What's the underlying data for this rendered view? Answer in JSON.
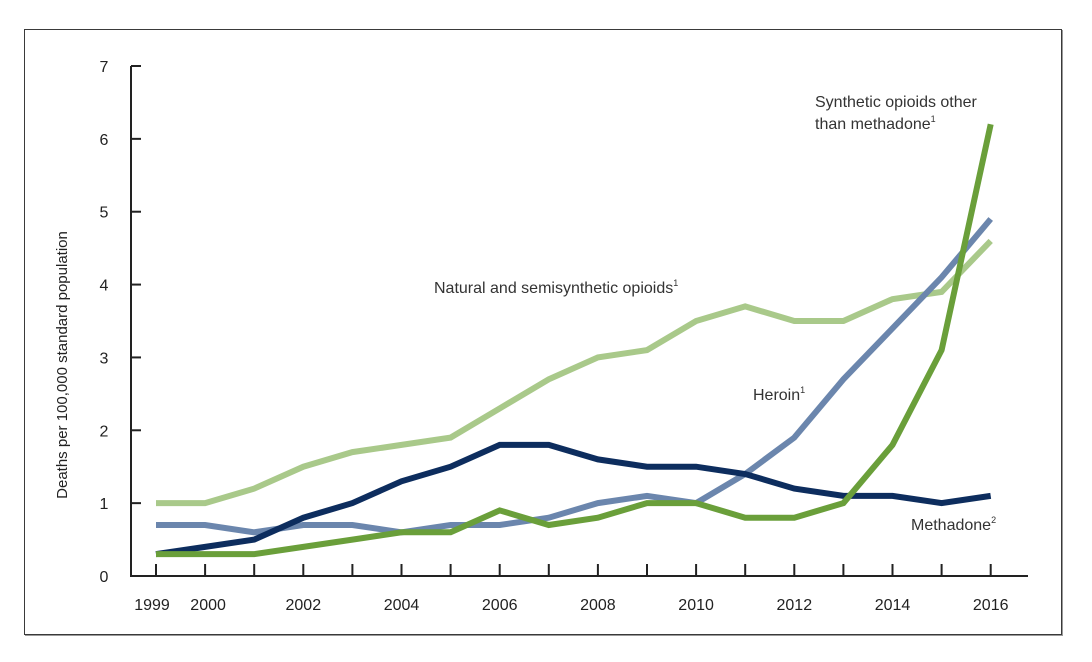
{
  "chart_data": {
    "type": "line",
    "title": "",
    "xlabel": "",
    "ylabel": "Deaths per 100,000 standard population",
    "ylim": [
      0,
      7
    ],
    "xlim": [
      1999,
      2016
    ],
    "grid": false,
    "x": [
      1999,
      2000,
      2001,
      2002,
      2003,
      2004,
      2005,
      2006,
      2007,
      2008,
      2009,
      2010,
      2011,
      2012,
      2013,
      2014,
      2015,
      2016
    ],
    "x_tick_labels": [
      "1999",
      "2000",
      "2002",
      "2004",
      "2006",
      "2008",
      "2010",
      "2012",
      "2014",
      "2016"
    ],
    "y_tick_labels": [
      "0",
      "1",
      "2",
      "3",
      "4",
      "5",
      "6",
      "7"
    ],
    "series": [
      {
        "name": "Natural and semisynthetic opioids",
        "footnote": "1",
        "color": "#a9c98a",
        "values": [
          1.0,
          1.0,
          1.2,
          1.5,
          1.7,
          1.8,
          1.9,
          2.3,
          2.7,
          3.0,
          3.1,
          3.5,
          3.7,
          3.5,
          3.5,
          3.8,
          3.9,
          4.6
        ]
      },
      {
        "name": "Methadone",
        "footnote": "2",
        "color": "#0d2d5e",
        "values": [
          0.3,
          0.4,
          0.5,
          0.8,
          1.0,
          1.3,
          1.5,
          1.8,
          1.8,
          1.6,
          1.5,
          1.5,
          1.4,
          1.2,
          1.1,
          1.1,
          1.0,
          1.1
        ]
      },
      {
        "name": "Heroin",
        "footnote": "1",
        "color": "#6b86ad",
        "values": [
          0.7,
          0.7,
          0.6,
          0.7,
          0.7,
          0.6,
          0.7,
          0.7,
          0.8,
          1.0,
          1.1,
          1.0,
          1.4,
          1.9,
          2.7,
          3.4,
          4.1,
          4.9
        ]
      },
      {
        "name": "Synthetic opioids other than methadone",
        "name_lines": [
          "Synthetic opioids other",
          "than methadone"
        ],
        "footnote": "1",
        "color": "#6a9f3a",
        "values": [
          0.3,
          0.3,
          0.3,
          0.4,
          0.5,
          0.6,
          0.6,
          0.9,
          0.7,
          0.8,
          1.0,
          1.0,
          0.8,
          0.8,
          1.0,
          1.8,
          3.1,
          6.2
        ]
      }
    ]
  }
}
